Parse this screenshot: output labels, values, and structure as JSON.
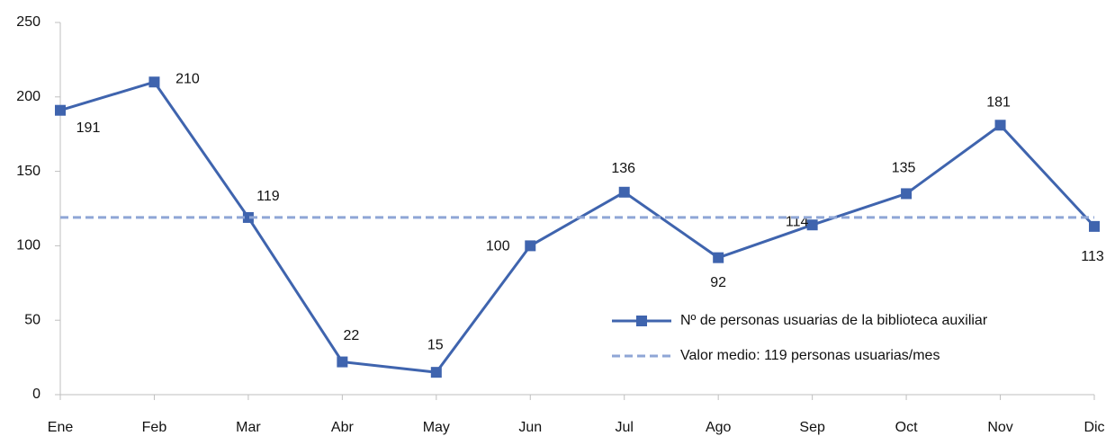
{
  "chart_data": {
    "type": "line",
    "categories": [
      "Ene",
      "Feb",
      "Mar",
      "Abr",
      "May",
      "Jun",
      "Jul",
      "Ago",
      "Sep",
      "Oct",
      "Nov",
      "Dic"
    ],
    "series": [
      {
        "name": "Nº de personas usuarias de la biblioteca auxiliar",
        "color": "#3f64ae",
        "marker": "square",
        "values": [
          191,
          210,
          119,
          22,
          15,
          100,
          136,
          92,
          114,
          135,
          181,
          113
        ]
      },
      {
        "name": "Valor medio: 119 personas usuarias/mes",
        "color": "#8fa6d6",
        "dashed": true,
        "values": [
          119,
          119,
          119,
          119,
          119,
          119,
          119,
          119,
          119,
          119,
          119,
          119
        ]
      }
    ],
    "ylim": [
      0,
      250
    ],
    "yticks": [
      0,
      50,
      100,
      150,
      200,
      250
    ],
    "grid": false,
    "legend": "lower right"
  }
}
